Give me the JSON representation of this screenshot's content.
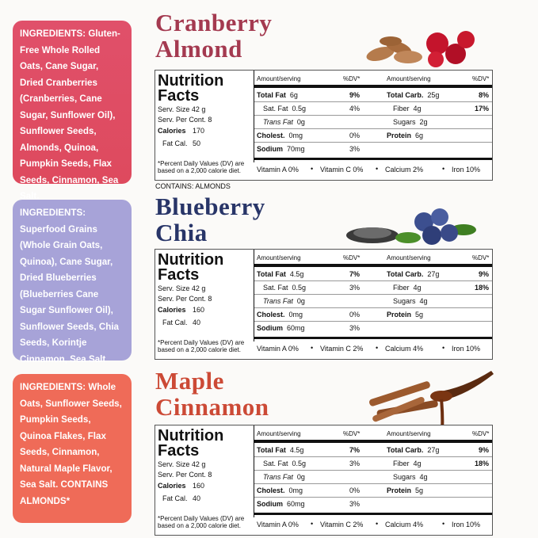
{
  "products": [
    {
      "ingredients": "INGREDIENTS: Gluten-Free Whole Rolled Oats, Cane Sugar, Dried Cranberries (Cranberries, Cane Sugar, Sunflower Oil), Sunflower Seeds, Almonds, Quinoa, Pumpkin Seeds, Flax Seeds, Cinnamon, Sea Salt.",
      "name": [
        "Cranberry",
        "Almond"
      ],
      "nutrition": {
        "title": [
          "Nutrition",
          "Facts"
        ],
        "serving_size": "Serv. Size 42 g",
        "servings": "Serv. Per Cont. 8",
        "calories": {
          "label": "Calories",
          "value": "170"
        },
        "fat_calories": {
          "label": "Fat Cal.",
          "value": "50"
        },
        "footnote": "*Percent Daily Values (DV) are based on a 2,000 calorie diet.",
        "header": [
          "Amount/serving",
          "%DV*",
          "Amount/serving",
          "%DV*"
        ],
        "left": [
          {
            "label": "Total Fat",
            "amount": "6g",
            "dv": "9%"
          },
          {
            "label": "Sat. Fat",
            "amount": "0.5g",
            "dv": "4%"
          },
          {
            "label": "Trans Fat",
            "amount": "0g"
          },
          {
            "label": "Cholest.",
            "amount": "0mg",
            "dv": "0%"
          },
          {
            "label": "Sodium",
            "amount": "70mg",
            "dv": "3%"
          }
        ],
        "right": [
          {
            "label": "Total Carb.",
            "amount": "25g",
            "dv": "8%"
          },
          {
            "label": "Fiber",
            "amount": "4g",
            "dv": "17%"
          },
          {
            "label": "Sugars",
            "amount": "2g"
          },
          {
            "label": "Protein",
            "amount": "6g"
          }
        ],
        "vitamins": [
          "Vitamin A 0%",
          "Vitamin C 0%",
          "Calcium 2%",
          "Iron 10%"
        ]
      },
      "contains": "CONTAINS: ALMONDS"
    },
    {
      "ingredients": "INGREDIENTS: Superfood Grains (Whole Grain Oats, Quinoa), Cane Sugar, Dried Blueberries (Blueberries Cane Sugar Sunflower Oil), Sunflower Seeds, Chia Seeds, Korintje Cinnamon, Sea Salt",
      "name": [
        "Blueberry",
        "Chia"
      ],
      "nutrition": {
        "title": [
          "Nutrition",
          "Facts"
        ],
        "serving_size": "Serv. Size 42 g",
        "servings": "Serv. Per Cont. 8",
        "calories": {
          "label": "Calories",
          "value": "160"
        },
        "fat_calories": {
          "label": "Fat Cal.",
          "value": "40"
        },
        "footnote": "*Percent Daily Values (DV) are based on a 2,000 calorie diet.",
        "header": [
          "Amount/serving",
          "%DV*",
          "Amount/serving",
          "%DV*"
        ],
        "left": [
          {
            "label": "Total Fat",
            "amount": "4.5g",
            "dv": "7%"
          },
          {
            "label": "Sat. Fat",
            "amount": "0.5g",
            "dv": "3%"
          },
          {
            "label": "Trans Fat",
            "amount": "0g"
          },
          {
            "label": "Cholest.",
            "amount": "0mg",
            "dv": "0%"
          },
          {
            "label": "Sodium",
            "amount": "60mg",
            "dv": "3%"
          }
        ],
        "right": [
          {
            "label": "Total Carb.",
            "amount": "27g",
            "dv": "9%"
          },
          {
            "label": "Fiber",
            "amount": "4g",
            "dv": "18%"
          },
          {
            "label": "Sugars",
            "amount": "4g"
          },
          {
            "label": "Protein",
            "amount": "5g"
          }
        ],
        "vitamins": [
          "Vitamin A 0%",
          "Vitamin C 2%",
          "Calcium 4%",
          "Iron 10%"
        ]
      }
    },
    {
      "ingredients": "INGREDIENTS: Whole Oats, Sunflower Seeds, Pumpkin Seeds, Quinoa Flakes, Flax Seeds, Cinnamon, Natural Maple Flavor, Sea Salt. CONTAINS ALMONDS*",
      "name": [
        "Maple",
        "Cinnamon"
      ],
      "nutrition": {
        "title": [
          "Nutrition",
          "Facts"
        ],
        "serving_size": "Serv. Size 42 g",
        "servings": "Serv. Per Cont. 8",
        "calories": {
          "label": "Calories",
          "value": "160"
        },
        "fat_calories": {
          "label": "Fat Cal.",
          "value": "40"
        },
        "footnote": "*Percent Daily Values (DV) are based on a 2,000 calorie diet.",
        "header": [
          "Amount/serving",
          "%DV*",
          "Amount/serving",
          "%DV*"
        ],
        "left": [
          {
            "label": "Total Fat",
            "amount": "4.5g",
            "dv": "7%"
          },
          {
            "label": "Sat. Fat",
            "amount": "0.5g",
            "dv": "3%"
          },
          {
            "label": "Trans Fat",
            "amount": "0g"
          },
          {
            "label": "Cholest.",
            "amount": "0mg",
            "dv": "0%"
          },
          {
            "label": "Sodium",
            "amount": "60mg",
            "dv": "3%"
          }
        ],
        "right": [
          {
            "label": "Total Carb.",
            "amount": "27g",
            "dv": "9%"
          },
          {
            "label": "Fiber",
            "amount": "4g",
            "dv": "18%"
          },
          {
            "label": "Sugars",
            "amount": "4g"
          },
          {
            "label": "Protein",
            "amount": "5g"
          }
        ],
        "vitamins": [
          "Vitamin A 0%",
          "Vitamin C 2%",
          "Calcium 4%",
          "Iron 10%"
        ]
      }
    }
  ]
}
